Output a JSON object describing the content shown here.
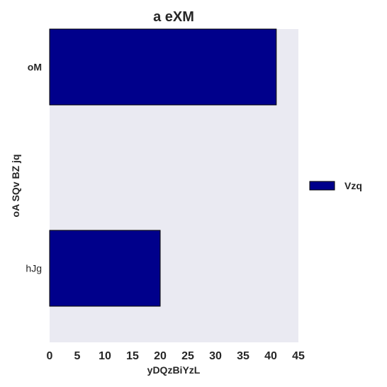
{
  "chart_data": {
    "type": "bar",
    "orientation": "horizontal",
    "title": "a eXM",
    "xlabel": "yDQzBiYzL",
    "ylabel": "oA SQv BZ jq",
    "categories": [
      "oM",
      "hJg"
    ],
    "series": [
      {
        "name": "Vzq",
        "values": [
          41,
          20
        ],
        "color": "#00008b"
      }
    ],
    "xlim": [
      0,
      45
    ],
    "xticks": [
      "0",
      "5",
      "10",
      "15",
      "20",
      "25",
      "30",
      "35",
      "40",
      "45"
    ],
    "grid": false,
    "legend_position": "right",
    "plot_background": "#eaeaf2"
  }
}
